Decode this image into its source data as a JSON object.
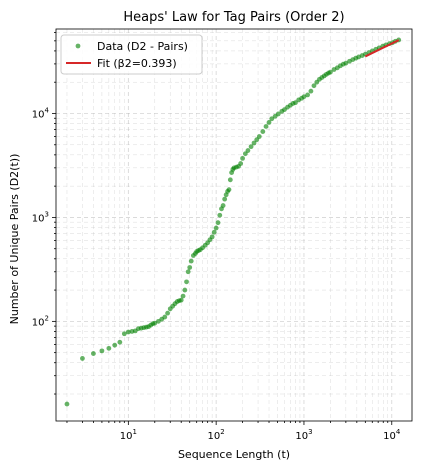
{
  "colors": {
    "data_points": "#008000",
    "fit_line": "#d62728",
    "grid": "#b0b0b0",
    "axes": "#000000",
    "legend_border": "#cccccc"
  },
  "chart_data": {
    "type": "scatter",
    "title": "Heaps' Law for Tag Pairs (Order 2)",
    "xlabel": "Sequence Length (t)",
    "ylabel": "Number of Unique Pairs (D2(t))",
    "xscale": "log",
    "yscale": "log",
    "xlim": [
      1.5,
      17000
    ],
    "ylim": [
      11,
      65000
    ],
    "grid": "major and minor, dashed",
    "legend_position": "top-left",
    "x_ticks": [
      {
        "value": 10,
        "base": "10",
        "exp": "1"
      },
      {
        "value": 100,
        "base": "10",
        "exp": "2"
      },
      {
        "value": 1000,
        "base": "10",
        "exp": "3"
      },
      {
        "value": 10000,
        "base": "10",
        "exp": "4"
      }
    ],
    "y_ticks": [
      {
        "value": 100,
        "base": "10",
        "exp": "2"
      },
      {
        "value": 1000,
        "base": "10",
        "exp": "3"
      },
      {
        "value": 10000,
        "base": "10",
        "exp": "4"
      }
    ],
    "series": [
      {
        "name": "Data (D2 - Pairs)",
        "marker": "circle",
        "x": [
          2,
          3,
          4,
          5,
          6,
          7,
          8,
          9,
          10,
          11,
          12,
          13,
          14,
          15,
          16,
          17,
          18,
          19,
          20,
          22,
          24,
          26,
          28,
          30,
          32,
          34,
          36,
          38,
          40,
          42,
          44,
          46,
          48,
          50,
          52,
          55,
          58,
          60,
          63,
          66,
          70,
          75,
          80,
          85,
          90,
          95,
          100,
          105,
          110,
          115,
          120,
          125,
          130,
          135,
          140,
          145,
          150,
          155,
          160,
          170,
          180,
          190,
          200,
          215,
          230,
          250,
          270,
          290,
          310,
          340,
          370,
          400,
          430,
          470,
          510,
          560,
          600,
          650,
          700,
          750,
          800,
          870,
          940,
          1000,
          1100,
          1200,
          1300,
          1400,
          1500,
          1600,
          1700,
          1800,
          1900,
          2000,
          2200,
          2400,
          2600,
          2800,
          3000,
          3300,
          3600,
          3900,
          4200,
          4600,
          5000,
          5500,
          6000,
          6600,
          7200,
          7900,
          8600,
          9400,
          10200,
          11000,
          12000
        ],
        "y": [
          16,
          44,
          49,
          52,
          55,
          59,
          63,
          76,
          79,
          80,
          81,
          85,
          86,
          87,
          88,
          89,
          92,
          95,
          96,
          100,
          105,
          110,
          120,
          132,
          140,
          148,
          155,
          158,
          160,
          175,
          200,
          240,
          300,
          330,
          380,
          430,
          450,
          470,
          480,
          490,
          510,
          540,
          570,
          610,
          650,
          720,
          790,
          890,
          1050,
          1210,
          1300,
          1500,
          1650,
          1780,
          1850,
          2300,
          2700,
          2900,
          3000,
          3050,
          3100,
          3300,
          3700,
          4100,
          4400,
          4800,
          5200,
          5600,
          6000,
          6700,
          7500,
          8200,
          8900,
          9400,
          9900,
          10500,
          10900,
          11500,
          12000,
          12500,
          12700,
          13500,
          14000,
          14500,
          15100,
          16400,
          18500,
          20000,
          21300,
          22200,
          23000,
          23800,
          24500,
          25000,
          26500,
          27500,
          28800,
          29800,
          30500,
          31800,
          33000,
          34100,
          35000,
          36100,
          37200,
          38600,
          40000,
          41500,
          42800,
          44400,
          45700,
          47000,
          48000,
          49500,
          51000
        ]
      },
      {
        "name": "Fit (β2=0.393)",
        "type": "line",
        "fit_exponent": 0.393,
        "x": [
          5000,
          12000
        ],
        "y": [
          35400,
          50800
        ]
      }
    ]
  }
}
